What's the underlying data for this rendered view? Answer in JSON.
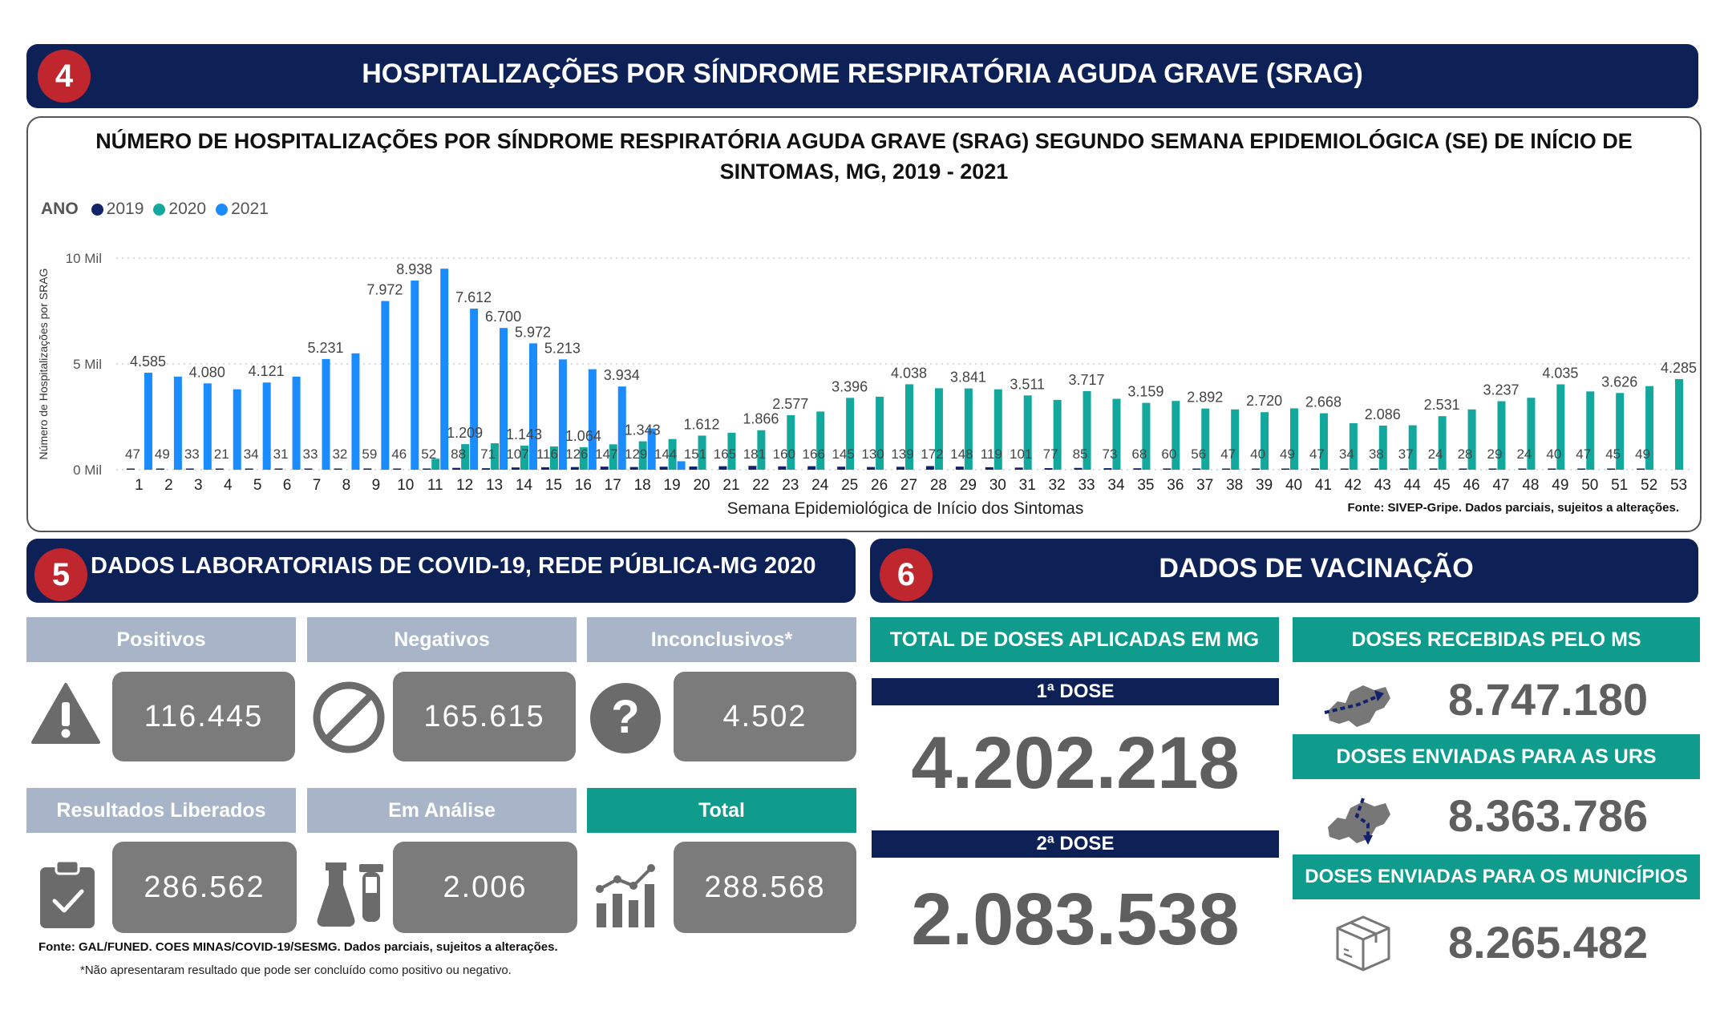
{
  "section4": {
    "number": "4",
    "title": "HOSPITALIZAÇÕES POR SÍNDROME RESPIRATÓRIA AGUDA GRAVE (SRAG)"
  },
  "chart_data": {
    "type": "bar",
    "title": "NÚMERO DE HOSPITALIZAÇÕES POR SÍNDROME RESPIRATÓRIA AGUDA GRAVE (SRAG) SEGUNDO SEMANA EPIDEMIOLÓGICA (SE) DE INÍCIO DE SINTOMAS, MG, 2019 - 2021",
    "legend_title": "ANO",
    "xlabel": "Semana Epidemiológica de Início dos Sintomas",
    "ylabel": "Número de Hospitalizações por SRAG",
    "yticks": [
      "10 Mil",
      "5 Mil",
      "0 Mil"
    ],
    "ylim": [
      0,
      10000
    ],
    "grid": true,
    "legend_position": "top-left",
    "categories": [
      "1",
      "2",
      "3",
      "4",
      "5",
      "6",
      "7",
      "8",
      "9",
      "10",
      "11",
      "12",
      "13",
      "14",
      "15",
      "16",
      "17",
      "18",
      "19",
      "20",
      "21",
      "22",
      "23",
      "24",
      "25",
      "26",
      "27",
      "28",
      "29",
      "30",
      "31",
      "32",
      "33",
      "34",
      "35",
      "36",
      "37",
      "38",
      "39",
      "40",
      "41",
      "42",
      "43",
      "44",
      "45",
      "46",
      "47",
      "48",
      "49",
      "50",
      "51",
      "52",
      "53"
    ],
    "series": [
      {
        "name": "2019",
        "color": "#12236b",
        "values": [
          47,
          49,
          33,
          21,
          34,
          31,
          33,
          32,
          59,
          46,
          52,
          88,
          71,
          107,
          116,
          126,
          147,
          129,
          144,
          151,
          165,
          181,
          160,
          166,
          145,
          130,
          139,
          172,
          148,
          119,
          101,
          77,
          85,
          73,
          68,
          60,
          56,
          47,
          40,
          49,
          47,
          34,
          38,
          37,
          24,
          28,
          29,
          24,
          40,
          47,
          45,
          49,
          null
        ]
      },
      {
        "name": "2020",
        "color": "#13a89e",
        "values": [
          null,
          null,
          null,
          null,
          null,
          null,
          null,
          null,
          null,
          null,
          520,
          1209,
          1250,
          1143,
          1100,
          1064,
          1200,
          1343,
          1450,
          1612,
          1750,
          1866,
          2577,
          2750,
          3396,
          3450,
          4038,
          3850,
          3841,
          3800,
          3511,
          3300,
          3717,
          3350,
          3159,
          3250,
          2892,
          2850,
          2720,
          2900,
          2668,
          2200,
          2086,
          2100,
          2531,
          2850,
          3237,
          3400,
          4035,
          3700,
          3626,
          3950,
          4285
        ]
      },
      {
        "name": "2021",
        "color": "#1a8cff",
        "values": [
          4585,
          4400,
          4080,
          3800,
          4121,
          4400,
          5231,
          5500,
          7972,
          8938,
          9500,
          7612,
          6700,
          5972,
          5213,
          4750,
          3934,
          1950,
          400,
          null,
          null,
          null,
          null,
          null,
          null,
          null,
          null,
          null,
          null,
          null,
          null,
          null,
          null,
          null,
          null,
          null,
          null,
          null,
          null,
          null,
          null,
          null,
          null,
          null,
          null,
          null,
          null,
          null,
          null,
          null,
          null,
          null,
          null
        ]
      }
    ],
    "data_labels": [
      {
        "cat": "1",
        "series": "2021",
        "text": "4.585"
      },
      {
        "cat": "3",
        "series": "2021",
        "text": "4.080"
      },
      {
        "cat": "5",
        "series": "2021",
        "text": "4.121"
      },
      {
        "cat": "7",
        "series": "2021",
        "text": "5.231"
      },
      {
        "cat": "9",
        "series": "2021",
        "text": "7.972"
      },
      {
        "cat": "10",
        "series": "2021",
        "text": "8.938"
      },
      {
        "cat": "12",
        "series": "2021",
        "text": "7.612"
      },
      {
        "cat": "13",
        "series": "2021",
        "text": "6.700"
      },
      {
        "cat": "14",
        "series": "2021",
        "text": "5.972"
      },
      {
        "cat": "15",
        "series": "2021",
        "text": "5.213"
      },
      {
        "cat": "17",
        "series": "2021",
        "text": "3.934"
      },
      {
        "cat": "12",
        "series": "2020",
        "text": "1.209"
      },
      {
        "cat": "14",
        "series": "2020",
        "text": "1.143"
      },
      {
        "cat": "16",
        "series": "2020",
        "text": "1.064"
      },
      {
        "cat": "18",
        "series": "2020",
        "text": "1.343"
      },
      {
        "cat": "20",
        "series": "2020",
        "text": "1.612"
      },
      {
        "cat": "22",
        "series": "2020",
        "text": "1.866"
      },
      {
        "cat": "23",
        "series": "2020",
        "text": "2.577"
      },
      {
        "cat": "25",
        "series": "2020",
        "text": "3.396"
      },
      {
        "cat": "27",
        "series": "2020",
        "text": "4.038"
      },
      {
        "cat": "29",
        "series": "2020",
        "text": "3.841"
      },
      {
        "cat": "31",
        "series": "2020",
        "text": "3.511"
      },
      {
        "cat": "33",
        "series": "2020",
        "text": "3.717"
      },
      {
        "cat": "35",
        "series": "2020",
        "text": "3.159"
      },
      {
        "cat": "37",
        "series": "2020",
        "text": "2.892"
      },
      {
        "cat": "39",
        "series": "2020",
        "text": "2.720"
      },
      {
        "cat": "41",
        "series": "2020",
        "text": "2.668"
      },
      {
        "cat": "43",
        "series": "2020",
        "text": "2.086"
      },
      {
        "cat": "45",
        "series": "2020",
        "text": "2.531"
      },
      {
        "cat": "47",
        "series": "2020",
        "text": "3.237"
      },
      {
        "cat": "49",
        "series": "2020",
        "text": "4.035"
      },
      {
        "cat": "51",
        "series": "2020",
        "text": "3.626"
      },
      {
        "cat": "53",
        "series": "2020",
        "text": "4.285"
      }
    ],
    "low_labels_2019": [
      "47",
      "49",
      "33",
      "21",
      "34",
      "31",
      "33",
      "32",
      "59",
      "46",
      "52",
      "88",
      "71",
      "107",
      "116",
      "126",
      "147",
      "129",
      "144",
      "151",
      "165",
      "181",
      "160",
      "166",
      "145",
      "130",
      "139",
      "172",
      "148",
      "119",
      "101",
      "77",
      "85",
      "73",
      "68",
      "60",
      "56",
      "47",
      "40",
      "49",
      "47",
      "34",
      "38",
      "37",
      "24",
      "28",
      "29",
      "24",
      "40",
      "47",
      "45",
      "49"
    ],
    "source": "Fonte: SIVEP-Gripe. Dados parciais, sujeitos a alterações."
  },
  "section5": {
    "number": "5",
    "title": "DADOS LABORATORIAIS DE COVID-19, REDE PÚBLICA-MG 2020",
    "positivos": {
      "label": "Positivos",
      "value": "116.445"
    },
    "negativos": {
      "label": "Negativos",
      "value": "165.615"
    },
    "inconclusivos": {
      "label": "Inconclusivos*",
      "value": "4.502"
    },
    "liberados": {
      "label": "Resultados Liberados",
      "value": "286.562"
    },
    "analise": {
      "label": "Em Análise",
      "value": "2.006"
    },
    "total": {
      "label": "Total",
      "value": "288.568"
    },
    "source": "Fonte: GAL/FUNED. COES MINAS/COVID-19/SESMG. Dados parciais, sujeitos a alterações.",
    "note": "*Não apresentaram resultado que pode ser concluído como positivo ou negativo."
  },
  "section6": {
    "number": "6",
    "title": "DADOS DE VACINAÇÃO",
    "total_label": "TOTAL DE DOSES APLICADAS EM MG",
    "dose1_label": "1ª DOSE",
    "dose1_value": "4.202.218",
    "dose2_label": "2ª DOSE",
    "dose2_value": "2.083.538",
    "recebidas_label": "DOSES RECEBIDAS PELO MS",
    "recebidas_value": "8.747.180",
    "urs_label": "DOSES ENVIADAS PARA AS URS",
    "urs_value": "8.363.786",
    "municipios_label": "DOSES ENVIADAS PARA OS MUNICÍPIOS",
    "municipios_value": "8.265.482"
  },
  "colors": {
    "navy": "#0d2157",
    "red": "#c0262e",
    "teal": "#0f9c8c",
    "steel": "#a8b5c8",
    "gray_box": "#7b7b7b"
  }
}
